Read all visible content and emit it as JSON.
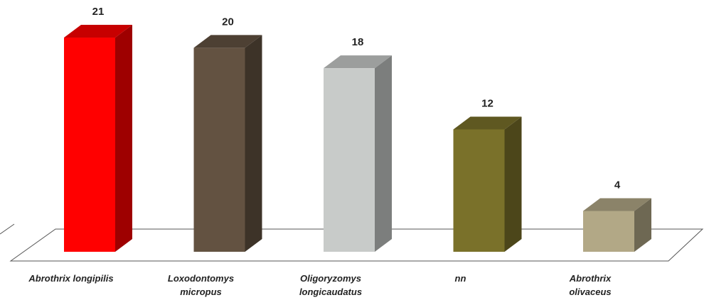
{
  "chart_data": {
    "type": "bar",
    "categories": [
      "Abrothrix longipilis",
      "Loxodontomys micropus",
      "Oligoryzomys longicaudatus",
      "nn",
      "Abrothrix olivaceus"
    ],
    "values": [
      21,
      20,
      18,
      12,
      4
    ],
    "colors": [
      "#ff0000",
      "#635241",
      "#c8cbc9",
      "#7a712a",
      "#b2a886"
    ]
  }
}
